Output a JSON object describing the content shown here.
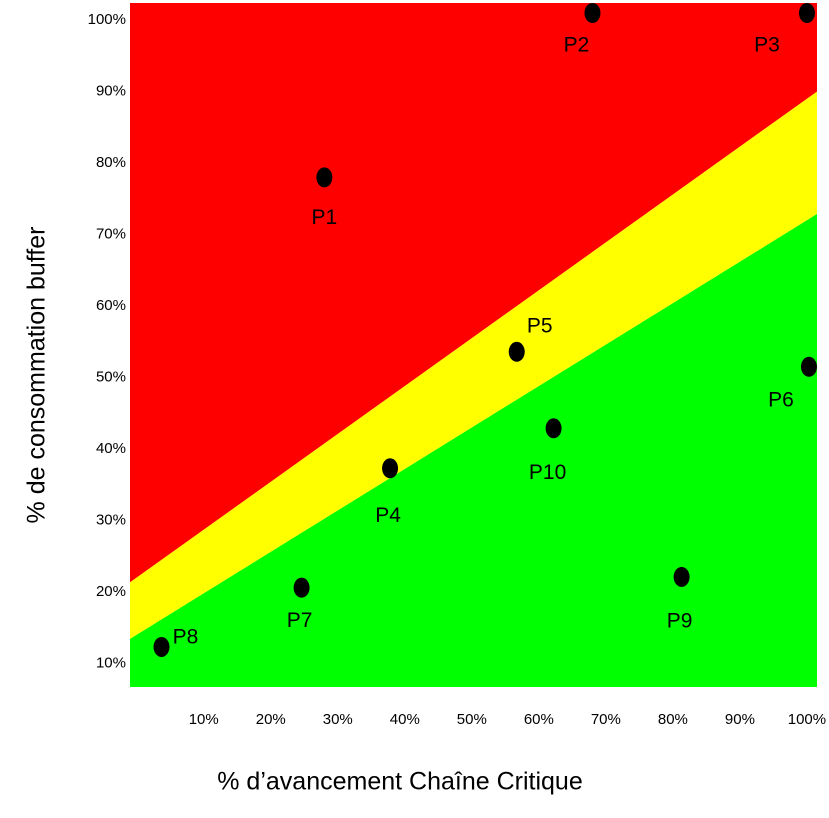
{
  "chart_data": {
    "type": "scatter",
    "x_label": "% d’avancement Chaîne Critique",
    "y_label": "% de consommation buffer",
    "xlim": [
      -1,
      101.5
    ],
    "ylim": [
      6.7,
      102.4
    ],
    "xticks": [
      {
        "value": 10,
        "label": "10%"
      },
      {
        "value": 20,
        "label": "20%"
      },
      {
        "value": 30,
        "label": "30%"
      },
      {
        "value": 40,
        "label": "40%"
      },
      {
        "value": 50,
        "label": "50%"
      },
      {
        "value": 60,
        "label": "60%"
      },
      {
        "value": 70,
        "label": "70%"
      },
      {
        "value": 80,
        "label": "80%"
      },
      {
        "value": 90,
        "label": "90%"
      },
      {
        "value": 100,
        "label": "100%"
      }
    ],
    "yticks": [
      {
        "value": 10,
        "label": "10%"
      },
      {
        "value": 20,
        "label": "20%"
      },
      {
        "value": 30,
        "label": "30%"
      },
      {
        "value": 40,
        "label": "40%"
      },
      {
        "value": 50,
        "label": "50%"
      },
      {
        "value": 60,
        "label": "60%"
      },
      {
        "value": 70,
        "label": "70%"
      },
      {
        "value": 80,
        "label": "80%"
      },
      {
        "value": 90,
        "label": "90%"
      },
      {
        "value": 100,
        "label": "100%"
      }
    ],
    "zones": [
      {
        "color": "#ff0000"
      },
      {
        "color": "#ffff00"
      },
      {
        "color": "#00ff00"
      }
    ],
    "boundaries": [
      {
        "x": [
          0,
          100
        ],
        "y": [
          22,
          89
        ]
      },
      {
        "x": [
          0,
          100
        ],
        "y": [
          14,
          72
        ]
      }
    ],
    "point_color": "#000000",
    "labels": [
      "P1",
      "P2",
      "P3",
      "P4",
      "P5",
      "P6",
      "P7",
      "P8",
      "P9",
      "P10"
    ],
    "x": [
      28,
      68,
      100,
      37.8,
      56.7,
      100.3,
      24.6,
      3.7,
      81.3,
      62.2
    ],
    "y": [
      78,
      101,
      101,
      37.3,
      53.6,
      51.5,
      20.6,
      12.3,
      22.1,
      42.9
    ]
  }
}
